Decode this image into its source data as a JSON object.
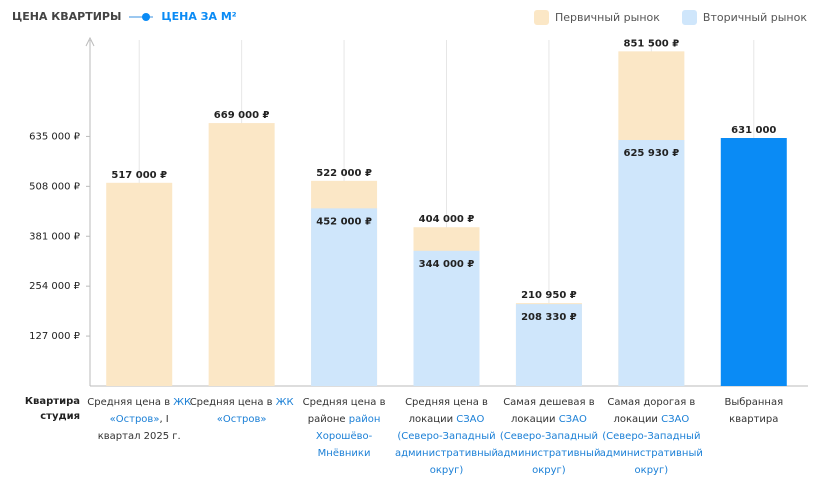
{
  "header": {
    "tab_active": "ЦЕНА КВАРТИРЫ",
    "tab_other": "ЦЕНА ЗА М²"
  },
  "row_label": "Квартира студия",
  "chart_data": {
    "type": "overlap_bar",
    "categories": [
      "Средняя цена в",
      "Средняя цена в",
      "Средняя цена в районе",
      "Средняя цена в локации",
      "Самая дешевая в локации",
      "Самая дорогая в локации",
      "Выбранная квартира"
    ],
    "category_links": [
      "ЖК «Остров»",
      "ЖК «Остров»",
      "район Хорошёво-Мнёвники",
      "СЗАО (Северо-Западный административный округ)",
      "СЗАО (Северо-Западный административный округ)",
      "СЗАО (Северо-Западный административный округ)",
      null
    ],
    "category_notes": [
      ", I квартал 2025 г.",
      null,
      null,
      null,
      null,
      null,
      null
    ],
    "series": [
      {
        "name": "Первичный рынок",
        "color": "#fbe7c6",
        "values": [
          517000,
          669000,
          522000,
          404000,
          210950,
          851500,
          null
        ],
        "value_labels": [
          "517 000 ₽",
          "669 000 ₽",
          "522 000 ₽",
          "404 000 ₽",
          "210 950 ₽",
          "851 500 ₽",
          null
        ]
      },
      {
        "name": "Вторичный рынок",
        "color": "#cfe6fb",
        "values": [
          null,
          null,
          452000,
          344000,
          208330,
          625930,
          null
        ],
        "value_labels": [
          null,
          null,
          "452 000 ₽",
          "344 000 ₽",
          "208 330 ₽",
          "625 930 ₽",
          null
        ]
      },
      {
        "color": "#0a8bf5",
        "values": [
          null,
          null,
          null,
          null,
          null,
          null,
          631000
        ],
        "value_labels": [
          null,
          null,
          null,
          null,
          null,
          null,
          "631 000"
        ]
      }
    ],
    "ylim": [
      0,
      860000
    ],
    "yticks": [
      {
        "value": 127000,
        "label": "127 000 ₽"
      },
      {
        "value": 254000,
        "label": "254 000 ₽"
      },
      {
        "value": 381000,
        "label": "381 000 ₽"
      },
      {
        "value": 508000,
        "label": "508 000 ₽"
      },
      {
        "value": 635000,
        "label": "635 000 ₽"
      }
    ],
    "grid": true,
    "legend": "top-right"
  }
}
